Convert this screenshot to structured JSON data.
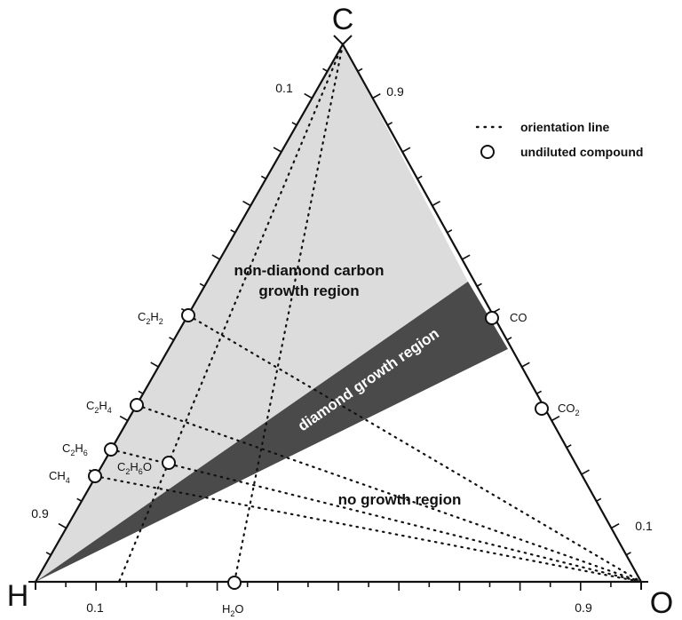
{
  "vertices": {
    "top": "C",
    "left": "H",
    "right": "O"
  },
  "ticks": {
    "left_edge_top": "0.1",
    "left_edge_bottom": "0.9",
    "right_edge_top": "0.9",
    "right_edge_bottom": "0.1",
    "bottom_edge_left": "0.1",
    "bottom_edge_right": "0.9"
  },
  "regions": {
    "non_diamond_line1": "non-diamond carbon",
    "non_diamond_line2": "growth region",
    "diamond": "diamond growth region",
    "no_growth": "no growth region"
  },
  "legend": {
    "orientation_line": "orientation line",
    "undiluted_compound": "undiluted compound"
  },
  "compounds": [
    {
      "id": "c2h2",
      "base": "C",
      "sub1": "2",
      "mid": "H",
      "sub2": "2",
      "tail": ""
    },
    {
      "id": "c2h4",
      "base": "C",
      "sub1": "2",
      "mid": "H",
      "sub2": "4",
      "tail": ""
    },
    {
      "id": "c2h6",
      "base": "C",
      "sub1": "2",
      "mid": "H",
      "sub2": "6",
      "tail": ""
    },
    {
      "id": "ch4",
      "base": "CH",
      "sub1": "4",
      "mid": "",
      "sub2": "",
      "tail": ""
    },
    {
      "id": "c2h6o",
      "base": "C",
      "sub1": "2",
      "mid": "H",
      "sub2": "6",
      "tail": "O"
    },
    {
      "id": "co",
      "base": "CO",
      "sub1": "",
      "mid": "",
      "sub2": "",
      "tail": ""
    },
    {
      "id": "co2",
      "base": "CO",
      "sub1": "2",
      "mid": "",
      "sub2": "",
      "tail": ""
    },
    {
      "id": "h2o",
      "base": "H",
      "sub1": "2",
      "mid": "O",
      "sub2": "",
      "tail": ""
    }
  ],
  "colors": {
    "non_diamond_fill": "#dcdcdc",
    "diamond_fill": "#4a4a4a",
    "no_growth_fill": "#ffffff",
    "lines": "#111111"
  }
}
